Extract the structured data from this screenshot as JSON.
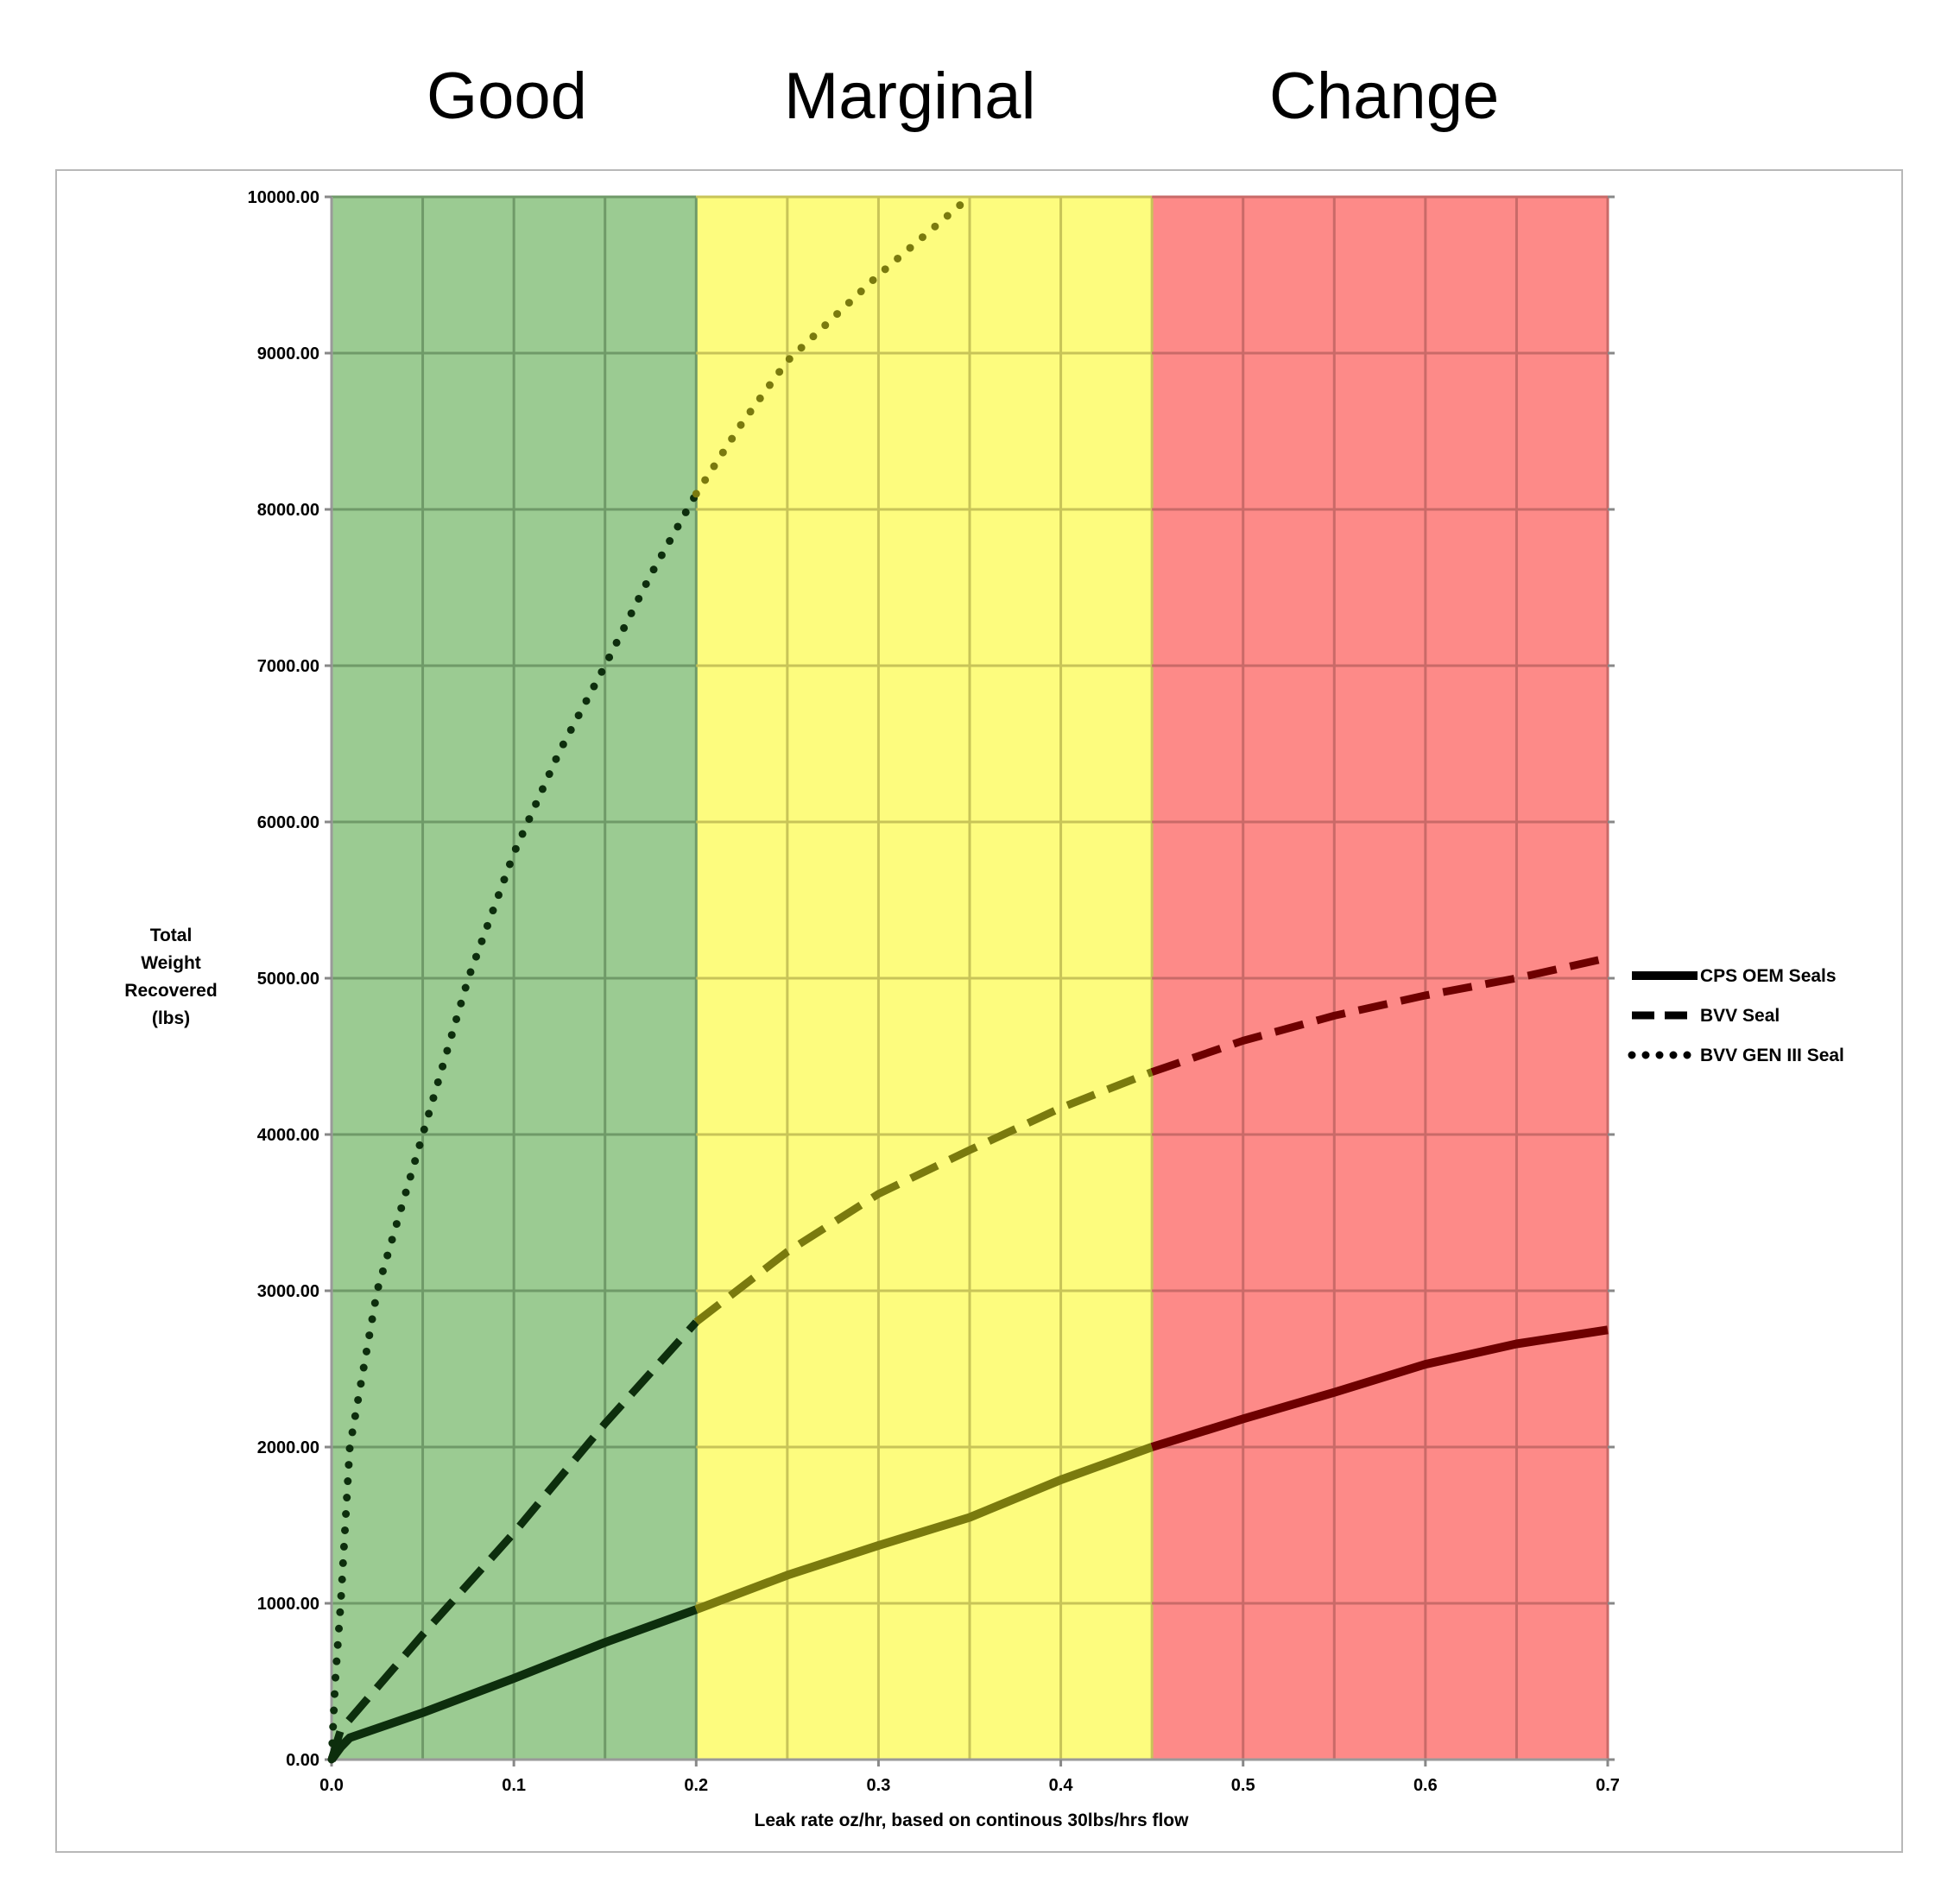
{
  "zones": [
    {
      "label": "Good",
      "color": "#8cc63f",
      "fill": "#9bcb92",
      "x_start": 0.0,
      "x_end": 0.2
    },
    {
      "label": "Marginal",
      "color": "#f6b93b",
      "fill": "#fdfc7e",
      "x_start": 0.2,
      "x_end": 0.45
    },
    {
      "label": "Change",
      "color": "#e0262a",
      "fill": "#fd8a88",
      "x_start": 0.45,
      "x_end": 0.7
    }
  ],
  "chart_data": {
    "type": "line",
    "title": "",
    "xlabel": "Leak rate oz/hr, based on continous  30lbs/hrs flow",
    "ylabel_lines": [
      "Total",
      "Weight",
      "Recovered",
      "(lbs)"
    ],
    "xlim": [
      0,
      0.7
    ],
    "ylim": [
      0,
      10000
    ],
    "x_ticks": [
      0.0,
      0.1,
      0.2,
      0.3,
      0.4,
      0.5,
      0.6,
      0.7
    ],
    "x_tick_labels": [
      "0.0",
      "0.1",
      "0.2",
      "0.3",
      "0.4",
      "0.5",
      "0.6",
      "0.7"
    ],
    "y_ticks": [
      0,
      1000,
      2000,
      3000,
      4000,
      5000,
      6000,
      7000,
      8000,
      9000,
      10000
    ],
    "y_tick_labels": [
      "0.00",
      "1000.00",
      "2000.00",
      "3000.00",
      "4000.00",
      "5000.00",
      "6000.00",
      "7000.00",
      "8000.00",
      "9000.00",
      "10000.00"
    ],
    "grid": true,
    "grid_x_step": 0.05,
    "legend_position": "right",
    "series": [
      {
        "name": "CPS OEM Seals",
        "style": "solid",
        "points": [
          [
            0.0,
            0
          ],
          [
            0.005,
            80
          ],
          [
            0.01,
            140
          ],
          [
            0.05,
            300
          ],
          [
            0.1,
            520
          ],
          [
            0.15,
            750
          ],
          [
            0.2,
            960
          ],
          [
            0.25,
            1180
          ],
          [
            0.3,
            1370
          ],
          [
            0.35,
            1550
          ],
          [
            0.4,
            1790
          ],
          [
            0.45,
            2000
          ],
          [
            0.5,
            2180
          ],
          [
            0.55,
            2350
          ],
          [
            0.6,
            2530
          ],
          [
            0.65,
            2660
          ],
          [
            0.7,
            2750
          ]
        ]
      },
      {
        "name": "BVV Seal",
        "style": "dashed",
        "points": [
          [
            0.0,
            0
          ],
          [
            0.005,
            190
          ],
          [
            0.05,
            800
          ],
          [
            0.1,
            1450
          ],
          [
            0.15,
            2150
          ],
          [
            0.2,
            2800
          ],
          [
            0.25,
            3250
          ],
          [
            0.3,
            3620
          ],
          [
            0.35,
            3900
          ],
          [
            0.4,
            4170
          ],
          [
            0.45,
            4400
          ],
          [
            0.5,
            4600
          ],
          [
            0.55,
            4760
          ],
          [
            0.6,
            4890
          ],
          [
            0.65,
            5000
          ],
          [
            0.7,
            5130
          ]
        ]
      },
      {
        "name": "BVV GEN III Seal",
        "style": "dotted",
        "points": [
          [
            0.0,
            0
          ],
          [
            0.002,
            500
          ],
          [
            0.005,
            1000
          ],
          [
            0.01,
            2000
          ],
          [
            0.025,
            3000
          ],
          [
            0.05,
            4000
          ],
          [
            0.075,
            5000
          ],
          [
            0.1,
            5800
          ],
          [
            0.125,
            6450
          ],
          [
            0.15,
            7000
          ],
          [
            0.175,
            7580
          ],
          [
            0.2,
            8100
          ],
          [
            0.225,
            8550
          ],
          [
            0.25,
            8950
          ],
          [
            0.3,
            9500
          ],
          [
            0.35,
            10000
          ]
        ]
      }
    ]
  }
}
